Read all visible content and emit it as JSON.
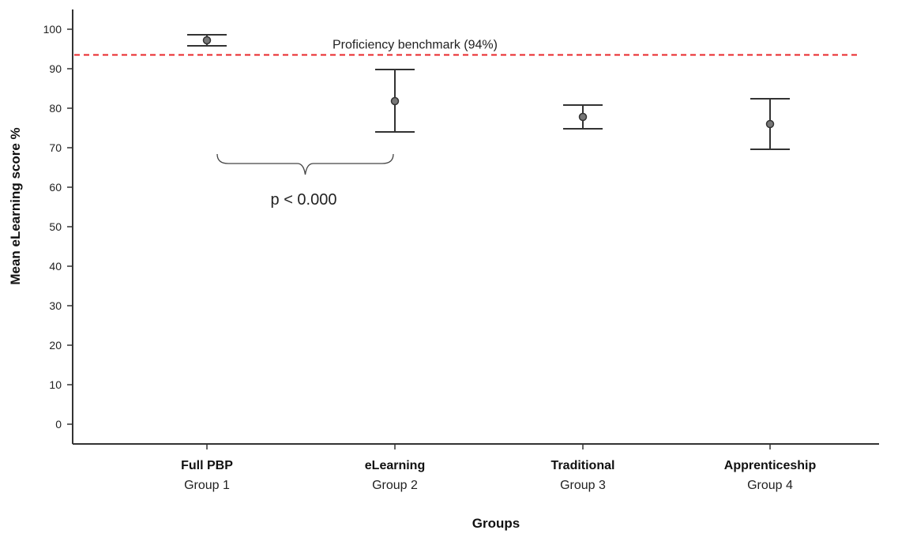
{
  "chart_data": {
    "type": "scatter",
    "subtype": "error-bar",
    "ylabel": "Mean eLearning score %",
    "xlabel": "Groups",
    "ylim": [
      -5,
      105
    ],
    "yticks": [
      0,
      10,
      20,
      30,
      40,
      50,
      60,
      70,
      80,
      90,
      100
    ],
    "grid": false,
    "categories": [
      {
        "name": "Full PBP",
        "sub": "Group 1"
      },
      {
        "name": "eLearning",
        "sub": "Group 2"
      },
      {
        "name": "Traditional",
        "sub": "Group 3"
      },
      {
        "name": "Apprenticeship",
        "sub": "Group 4"
      }
    ],
    "points": [
      {
        "mean": 97.2,
        "low": 95.8,
        "high": 98.6
      },
      {
        "mean": 81.8,
        "low": 74.0,
        "high": 89.8
      },
      {
        "mean": 77.8,
        "low": 74.8,
        "high": 80.8
      },
      {
        "mean": 76.0,
        "low": 69.6,
        "high": 82.4
      }
    ],
    "benchmark": {
      "value": 93.5,
      "label": "Proficiency benchmark (94%)",
      "color": "#e8262a"
    },
    "annotation": {
      "text": "p < 0.000",
      "from_category": 0,
      "to_category": 1,
      "y": 68
    }
  }
}
